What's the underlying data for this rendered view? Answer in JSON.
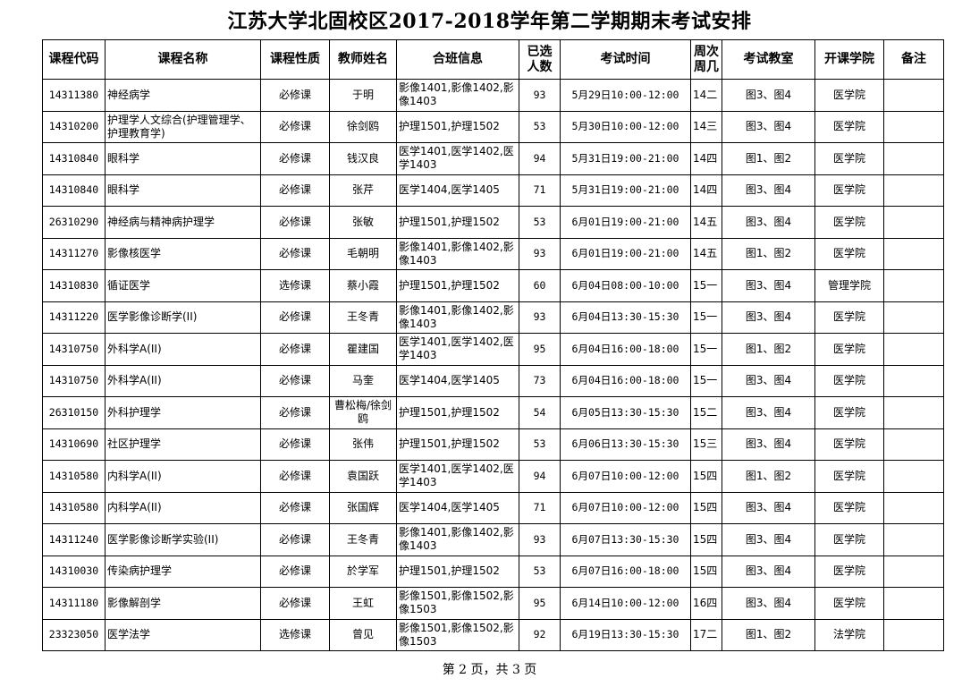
{
  "title": "江苏大学北固校区2017-2018学年第二学期期末考试安排",
  "columns": [
    "课程代码",
    "课程名称",
    "课程性质",
    "教师姓名",
    "合班信息",
    "已选人数",
    "考试时间",
    "周次周几",
    "考试教室",
    "开课学院",
    "备注"
  ],
  "rows": [
    [
      "14311380",
      "神经病学",
      "必修课",
      "于明",
      "影像1401,影像1402,影像1403",
      "93",
      "5月29日10:00-12:00",
      "14二",
      "图3、图4",
      "医学院",
      ""
    ],
    [
      "14310200",
      "护理学人文综合(护理管理学、护理教育学)",
      "必修课",
      "徐剑鸥",
      "护理1501,护理1502",
      "53",
      "5月30日10:00-12:00",
      "14三",
      "图3、图4",
      "医学院",
      ""
    ],
    [
      "14310840",
      "眼科学",
      "必修课",
      "钱汉良",
      "医学1401,医学1402,医学1403",
      "94",
      "5月31日19:00-21:00",
      "14四",
      "图1、图2",
      "医学院",
      ""
    ],
    [
      "14310840",
      "眼科学",
      "必修课",
      "张芹",
      "医学1404,医学1405",
      "71",
      "5月31日19:00-21:00",
      "14四",
      "图3、图4",
      "医学院",
      ""
    ],
    [
      "26310290",
      "神经病与精神病护理学",
      "必修课",
      "张敏",
      "护理1501,护理1502",
      "53",
      "6月01日19:00-21:00",
      "14五",
      "图3、图4",
      "医学院",
      ""
    ],
    [
      "14311270",
      "影像核医学",
      "必修课",
      "毛朝明",
      "影像1401,影像1402,影像1403",
      "93",
      "6月01日19:00-21:00",
      "14五",
      "图1、图2",
      "医学院",
      ""
    ],
    [
      "14310830",
      "循证医学",
      "选修课",
      "蔡小霞",
      "护理1501,护理1502",
      "60",
      "6月04日08:00-10:00",
      "15一",
      "图3、图4",
      "管理学院",
      ""
    ],
    [
      "14311220",
      "医学影像诊断学(II)",
      "必修课",
      "王冬青",
      "影像1401,影像1402,影像1403",
      "93",
      "6月04日13:30-15:30",
      "15一",
      "图3、图4",
      "医学院",
      ""
    ],
    [
      "14310750",
      "外科学A(II)",
      "必修课",
      "瞿建国",
      "医学1401,医学1402,医学1403",
      "95",
      "6月04日16:00-18:00",
      "15一",
      "图1、图2",
      "医学院",
      ""
    ],
    [
      "14310750",
      "外科学A(II)",
      "必修课",
      "马奎",
      "医学1404,医学1405",
      "73",
      "6月04日16:00-18:00",
      "15一",
      "图3、图4",
      "医学院",
      ""
    ],
    [
      "26310150",
      "外科护理学",
      "必修课",
      "曹松梅/徐剑鸥",
      "护理1501,护理1502",
      "54",
      "6月05日13:30-15:30",
      "15二",
      "图3、图4",
      "医学院",
      ""
    ],
    [
      "14310690",
      "社区护理学",
      "必修课",
      "张伟",
      "护理1501,护理1502",
      "53",
      "6月06日13:30-15:30",
      "15三",
      "图3、图4",
      "医学院",
      ""
    ],
    [
      "14310580",
      "内科学A(II)",
      "必修课",
      "袁国跃",
      "医学1401,医学1402,医学1403",
      "94",
      "6月07日10:00-12:00",
      "15四",
      "图1、图2",
      "医学院",
      ""
    ],
    [
      "14310580",
      "内科学A(II)",
      "必修课",
      "张国辉",
      "医学1404,医学1405",
      "71",
      "6月07日10:00-12:00",
      "15四",
      "图3、图4",
      "医学院",
      ""
    ],
    [
      "14311240",
      "医学影像诊断学实验(II)",
      "必修课",
      "王冬青",
      "影像1401,影像1402,影像1403",
      "93",
      "6月07日13:30-15:30",
      "15四",
      "图3、图4",
      "医学院",
      ""
    ],
    [
      "14310030",
      "传染病护理学",
      "必修课",
      "於学军",
      "护理1501,护理1502",
      "53",
      "6月07日16:00-18:00",
      "15四",
      "图3、图4",
      "医学院",
      ""
    ],
    [
      "14311180",
      "影像解剖学",
      "必修课",
      "王虹",
      "影像1501,影像1502,影像1503",
      "95",
      "6月14日10:00-12:00",
      "16四",
      "图3、图4",
      "医学院",
      ""
    ],
    [
      "23323050",
      "医学法学",
      "选修课",
      "曾见",
      "影像1501,影像1502,影像1503",
      "92",
      "6月19日13:30-15:30",
      "17二",
      "图1、图2",
      "法学院",
      ""
    ]
  ],
  "footer": "第 2 页，共 3 页"
}
